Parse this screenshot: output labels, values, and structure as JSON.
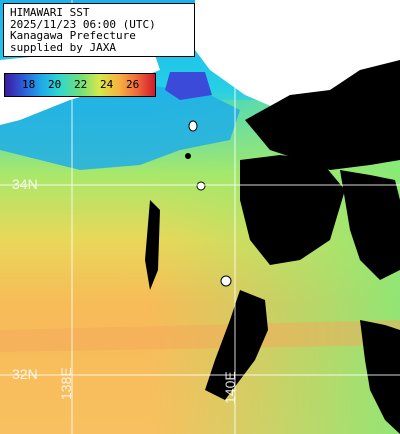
{
  "info": {
    "line1": "HIMAWARI SST",
    "line2": "2025/11/23 06:00 (UTC)",
    "line3": "Kanagawa Prefecture",
    "line4": "supplied by JAXA"
  },
  "colorbar": {
    "ticks": [
      "18",
      "20",
      "22",
      "24",
      "26"
    ]
  },
  "grid": {
    "lat_34": "34N",
    "lat_32": "32N",
    "lon_138": "138E",
    "lon_140": "140E"
  }
}
